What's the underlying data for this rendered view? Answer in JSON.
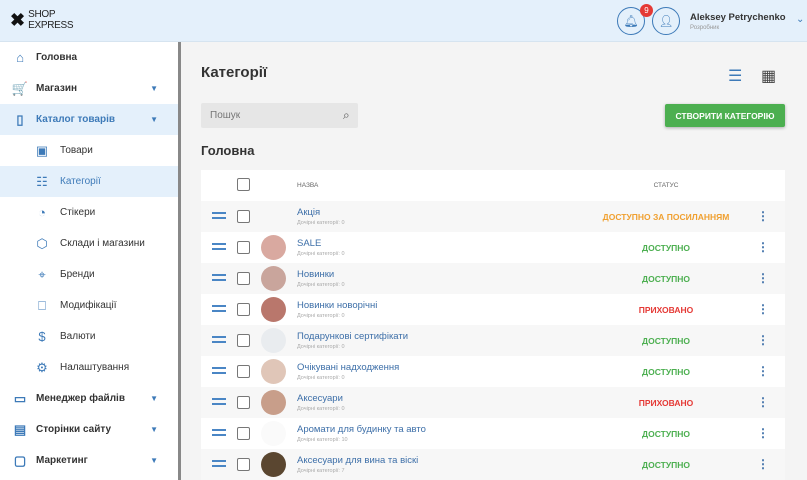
{
  "header": {
    "logo": "SHOP EXPRESS",
    "logo_line1": "SHOP",
    "logo_line2": "EXPRESS",
    "notifications": "9",
    "user_name": "Aleksey Petrychenko",
    "user_role": "Розробник"
  },
  "sidebar": {
    "items": [
      {
        "label": "Головна",
        "icon": "home-icon",
        "glyph": "⌂"
      },
      {
        "label": "Магазин",
        "icon": "cart-icon",
        "glyph": "🛒",
        "caret": true
      },
      {
        "label": "Каталог товарів",
        "icon": "book-icon",
        "glyph": "▯",
        "caret": true,
        "active": true
      },
      {
        "label": "Товари",
        "icon": "box-icon",
        "glyph": "▣",
        "sub": true
      },
      {
        "label": "Категорії",
        "icon": "list-icon",
        "glyph": "☷",
        "sub": true,
        "active": true
      },
      {
        "label": "Стікери",
        "icon": "sticker-icon",
        "glyph": "◔",
        "sub": true
      },
      {
        "label": "Склади і магазини",
        "icon": "cube-icon",
        "glyph": "⬡",
        "sub": true
      },
      {
        "label": "Бренди",
        "icon": "tag-icon",
        "glyph": "⌖",
        "sub": true
      },
      {
        "label": "Модифікації",
        "icon": "bookmark-icon",
        "glyph": "⎕",
        "sub": true
      },
      {
        "label": "Валюти",
        "icon": "dollar-icon",
        "glyph": "$",
        "sub": true
      },
      {
        "label": "Налаштування",
        "icon": "gear-icon",
        "glyph": "⚙",
        "sub": true
      },
      {
        "label": "Менеджер файлів",
        "icon": "folder-icon",
        "glyph": "▭",
        "caret": true,
        "bold": true
      },
      {
        "label": "Сторінки сайту",
        "icon": "page-icon",
        "glyph": "▤",
        "caret": true,
        "bold": true
      },
      {
        "label": "Маркетинг",
        "icon": "marketing-icon",
        "glyph": "▢",
        "caret": true,
        "bold": true
      }
    ]
  },
  "main": {
    "title": "Категорії",
    "search_placeholder": "Пошук",
    "create_label": "СТВОРИТИ КАТЕГОРІЮ",
    "section": "Головна",
    "columns": {
      "name": "НАЗВА",
      "status": "СТАТУС"
    },
    "rows": [
      {
        "name": "Акція",
        "sub": "Дочірні категорії: 0",
        "status": "ДОСТУПНО ЗА ПОСИЛАННЯМ",
        "color": "#f0a030",
        "thumb": "#f7f7f7"
      },
      {
        "name": "SALE",
        "sub": "Дочірні категорії: 0",
        "status": "ДОСТУПНО",
        "color": "#4caf50",
        "thumb": "#d9a9a0"
      },
      {
        "name": "Новинки",
        "sub": "Дочірні категорії: 0",
        "status": "ДОСТУПНО",
        "color": "#4caf50",
        "thumb": "#c9a59c"
      },
      {
        "name": "Новинки новорічні",
        "sub": "Дочірні категорії: 0",
        "status": "ПРИХОВАНО",
        "color": "#e53935",
        "thumb": "#b9776c"
      },
      {
        "name": "Подарункові сертифікати",
        "sub": "Дочірні категорії: 0",
        "status": "ДОСТУПНО",
        "color": "#4caf50",
        "thumb": "#e9ecef"
      },
      {
        "name": "Очікувані надходження",
        "sub": "Дочірні категорії: 0",
        "status": "ДОСТУПНО",
        "color": "#4caf50",
        "thumb": "#e0c6b8"
      },
      {
        "name": "Аксесуари",
        "sub": "Дочірні категорії: 0",
        "status": "ПРИХОВАНО",
        "color": "#e53935",
        "thumb": "#c89e8a"
      },
      {
        "name": "Аромати для будинку та авто",
        "sub": "Дочірні категорії: 10",
        "status": "ДОСТУПНО",
        "color": "#4caf50",
        "thumb": "#fafafa"
      },
      {
        "name": "Аксесуари для вина та віскі",
        "sub": "Дочірні категорії: 7",
        "status": "ДОСТУПНО",
        "color": "#4caf50",
        "thumb": "#5a4630"
      }
    ]
  }
}
